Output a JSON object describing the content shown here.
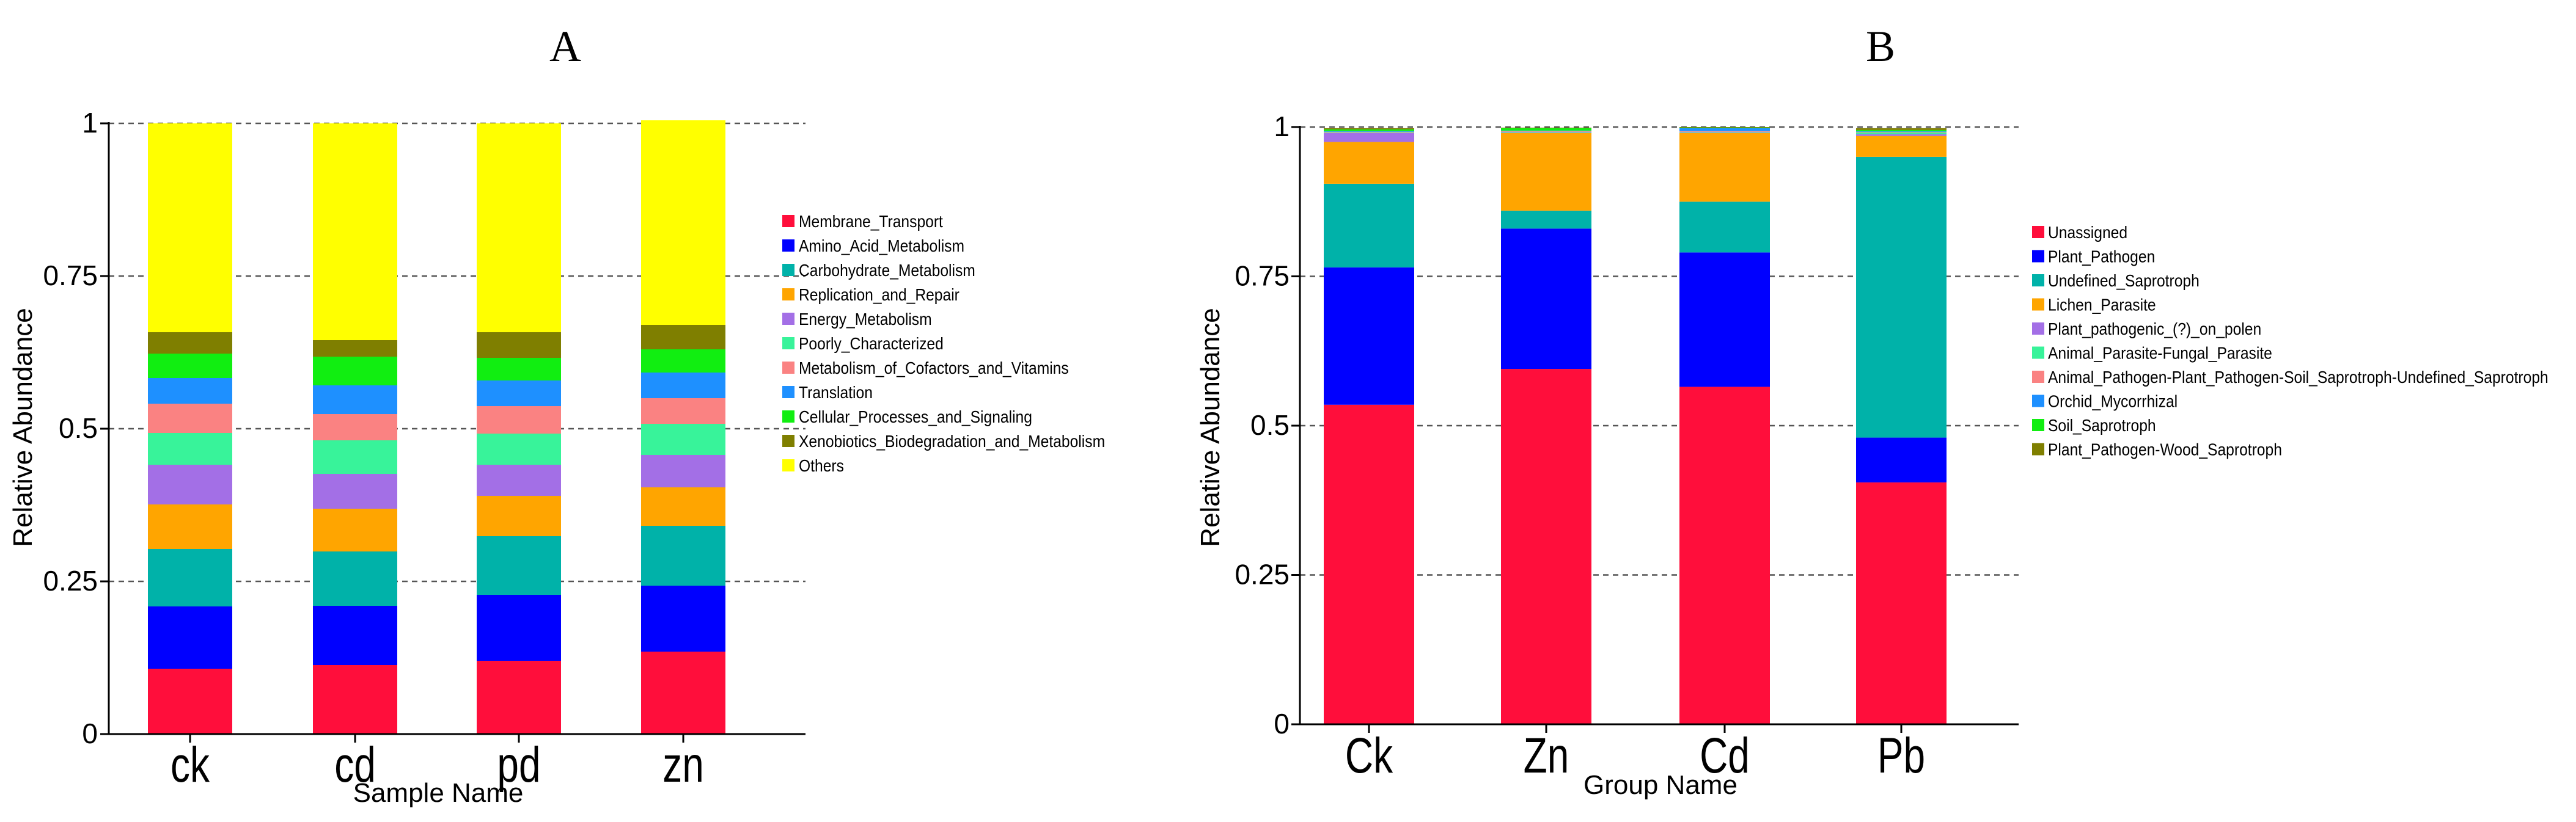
{
  "chart_data": [
    {
      "type": "bar",
      "stacked": true,
      "panel_label": "A",
      "title": "",
      "xlabel": "Sample Name",
      "ylabel": "Relative Abundance",
      "ylim": [
        0,
        1
      ],
      "yticks": [
        0,
        0.25,
        0.5,
        0.75,
        1
      ],
      "ytick_labels": [
        "0",
        "0.25",
        "0.5",
        "0.75",
        "1"
      ],
      "grid": "dashed-horizontal",
      "legend_position": "right",
      "categories": [
        "ck",
        "cd",
        "pd",
        "zn"
      ],
      "series": [
        {
          "name": "Membrane_Transport",
          "color": "#ff0e3b",
          "values": [
            0.107,
            0.113,
            0.12,
            0.135
          ]
        },
        {
          "name": "Amino_Acid_Metabolism",
          "color": "#0000ff",
          "values": [
            0.102,
            0.097,
            0.108,
            0.108
          ]
        },
        {
          "name": "Carbohydrate_Metabolism",
          "color": "#00b2a9",
          "values": [
            0.094,
            0.089,
            0.096,
            0.098
          ]
        },
        {
          "name": "Replication_and_Repair",
          "color": "#ffa500",
          "values": [
            0.073,
            0.07,
            0.066,
            0.063
          ]
        },
        {
          "name": "Energy_Metabolism",
          "color": "#a36fe6",
          "values": [
            0.065,
            0.057,
            0.051,
            0.053
          ]
        },
        {
          "name": "Poorly_Characterized",
          "color": "#38f39a",
          "values": [
            0.052,
            0.055,
            0.051,
            0.051
          ]
        },
        {
          "name": "Metabolism_of_Cofactors_and_Vitamins",
          "color": "#fa8282",
          "values": [
            0.048,
            0.043,
            0.045,
            0.042
          ]
        },
        {
          "name": "Translation",
          "color": "#1e90ff",
          "values": [
            0.042,
            0.047,
            0.042,
            0.042
          ]
        },
        {
          "name": "Cellular_Processes_and_Signaling",
          "color": "#11ee11",
          "values": [
            0.04,
            0.047,
            0.037,
            0.038
          ]
        },
        {
          "name": "Xenobiotics_Biodegradation_and_Metabolism",
          "color": "#7f7f00",
          "values": [
            0.035,
            0.027,
            0.042,
            0.04
          ]
        },
        {
          "name": "Others",
          "color": "#ffff00",
          "values": [
            0.342,
            0.355,
            0.342,
            0.335
          ]
        }
      ]
    },
    {
      "type": "bar",
      "stacked": true,
      "panel_label": "B",
      "title": "",
      "xlabel": "Group Name",
      "ylabel": "Relative Abundance",
      "ylim": [
        0,
        1
      ],
      "yticks": [
        0,
        0.25,
        0.5,
        0.75,
        1
      ],
      "ytick_labels": [
        "0",
        "0.25",
        "0.5",
        "0.75",
        "1"
      ],
      "grid": "dashed-horizontal",
      "legend_position": "right",
      "categories": [
        "Ck",
        "Zn",
        "Cd",
        "Pb"
      ],
      "series": [
        {
          "name": "Unassigned",
          "color": "#ff0e3b",
          "values": [
            0.535,
            0.595,
            0.565,
            0.405
          ]
        },
        {
          "name": "Plant_Pathogen",
          "color": "#0000ff",
          "values": [
            0.23,
            0.235,
            0.225,
            0.075
          ]
        },
        {
          "name": "Undefined_Saprotroph",
          "color": "#00b2a9",
          "values": [
            0.14,
            0.03,
            0.085,
            0.47
          ]
        },
        {
          "name": "Lichen_Parasite",
          "color": "#ffa500",
          "values": [
            0.07,
            0.13,
            0.115,
            0.035
          ]
        },
        {
          "name": "Plant_pathogenic_(?)_on_polen",
          "color": "#a36fe6",
          "values": [
            0.015,
            0.001,
            0.001,
            0.003
          ]
        },
        {
          "name": "Animal_Parasite-Fungal_Parasite",
          "color": "#38f39a",
          "values": [
            0.001,
            0.001,
            0.001,
            0.003
          ]
        },
        {
          "name": "Animal_Pathogen-Plant_Pathogen-Soil_Saprotroph-Undefined_Saprotroph",
          "color": "#fa8282",
          "values": [
            0.001,
            0.001,
            0.001,
            0.001
          ]
        },
        {
          "name": "Orchid_Mycorrhizal",
          "color": "#1e90ff",
          "values": [
            0.001,
            0.001,
            0.005,
            0.001
          ]
        },
        {
          "name": "Soil_Saprotroph",
          "color": "#11ee11",
          "values": [
            0.003,
            0.004,
            0.001,
            0.002
          ]
        },
        {
          "name": "Plant_Pathogen-Wood_Saprotroph",
          "color": "#7f7f00",
          "values": [
            0.002,
            0.001,
            0.001,
            0.003
          ]
        }
      ]
    }
  ]
}
